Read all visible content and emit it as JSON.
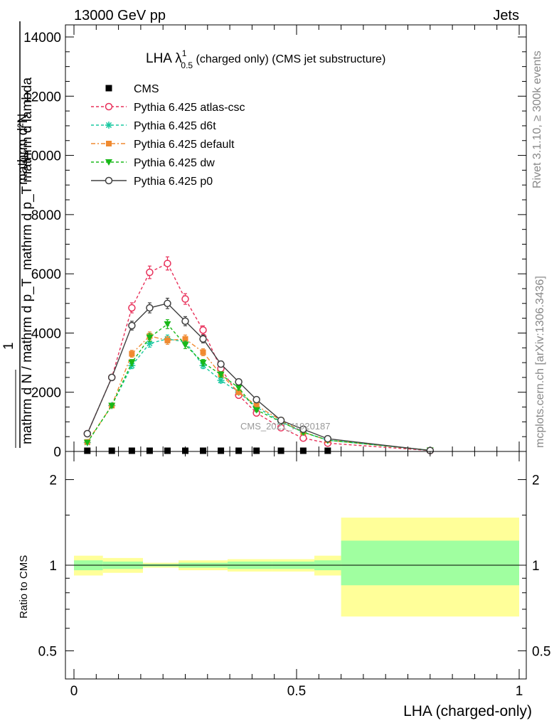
{
  "header": {
    "left": "13000 GeV pp",
    "right": "Jets"
  },
  "title": {
    "main": "LHA λ",
    "sup": "1",
    "sub": "0.5",
    "rest": " (charged only) (CMS jet substructure)"
  },
  "side_labels": {
    "rivet": "Rivet 3.1.10, ≥ 300k events",
    "mcplots": "mcplots.cern.ch [arXiv:1306.3436]"
  },
  "watermark": "CMS_2021_I1920187",
  "ylabel_main": {
    "line1": "mathrm d²N",
    "line2": "mathrm d p_T mathrm d lambda",
    "line3": "mathrm d p_T mathrm d lambda",
    "frac_num": "1",
    "frac_den": "mathrm d N / mathrm d p_T"
  },
  "ylabel_ratio": "Ratio to CMS",
  "xlabel": "LHA (charged-only)",
  "colors": {
    "atlas": "#e8305a",
    "d6t": "#18c8a0",
    "default": "#f08a30",
    "dw": "#18b818",
    "p0": "#404040",
    "band_inner": "#a0ff a0",
    "band_outer": "#ffff99"
  },
  "chart_data": [
    {
      "type": "line",
      "xlim": [
        0,
        1
      ],
      "ylim": [
        0,
        14000
      ],
      "yticks": [
        0,
        2000,
        4000,
        6000,
        8000,
        10000,
        12000,
        14000
      ],
      "ytick_labels": [
        "0",
        "2000",
        "4000",
        "6000",
        "8000",
        "10000",
        "12000",
        "14000"
      ],
      "x": [
        0.03,
        0.085,
        0.13,
        0.17,
        0.21,
        0.25,
        0.29,
        0.33,
        0.37,
        0.41,
        0.465,
        0.515,
        0.57,
        0.8
      ],
      "legend": [
        "CMS",
        "Pythia 6.425 atlas-csc",
        "Pythia 6.425 d6t",
        "Pythia 6.425 default",
        "Pythia 6.425 dw",
        "Pythia 6.425 p0"
      ],
      "series": [
        {
          "name": "CMS",
          "marker": "square",
          "values": [
            0,
            0,
            0,
            0,
            0,
            0,
            0,
            0,
            0,
            0,
            0,
            0,
            0,
            null
          ]
        },
        {
          "name": "Pythia 6.425 atlas-csc",
          "marker": "open-circle",
          "values": [
            600,
            2500,
            4850,
            6050,
            6350,
            5150,
            4100,
            2800,
            1900,
            1300,
            800,
            450,
            280,
            30
          ]
        },
        {
          "name": "Pythia 6.425 d6t",
          "marker": "star",
          "values": [
            300,
            1550,
            2900,
            3650,
            3800,
            3700,
            2900,
            2400,
            2000,
            1500,
            1000,
            650,
            380,
            40
          ]
        },
        {
          "name": "Pythia 6.425 default",
          "marker": "filled-square",
          "values": [
            320,
            1550,
            3300,
            3900,
            3750,
            3800,
            3350,
            2600,
            2000,
            1550,
            1050,
            650,
            380,
            40
          ]
        },
        {
          "name": "Pythia 6.425 dw",
          "marker": "filled-triangle-down",
          "values": [
            300,
            1550,
            3000,
            3850,
            4300,
            3600,
            3000,
            2600,
            2150,
            1400,
            1000,
            650,
            380,
            40
          ]
        },
        {
          "name": "Pythia 6.425 p0",
          "marker": "open-circle",
          "values": [
            600,
            2500,
            4250,
            4850,
            5000,
            4400,
            3800,
            2950,
            2350,
            1750,
            1050,
            750,
            430,
            30
          ]
        }
      ]
    },
    {
      "type": "area",
      "xlim": [
        0,
        1
      ],
      "ylim": [
        0.4,
        2.3
      ],
      "log_y": true,
      "yticks": [
        0.5,
        1,
        2
      ],
      "ytick_labels": [
        "0.5",
        "1",
        "2"
      ],
      "xticks": [
        0,
        0.5,
        1
      ],
      "xtick_labels": [
        "0",
        "0.5",
        "1"
      ],
      "bins": [
        [
          0,
          0.065
        ],
        [
          0.065,
          0.155
        ],
        [
          0.155,
          0.235
        ],
        [
          0.235,
          0.345
        ],
        [
          0.345,
          0.445
        ],
        [
          0.445,
          0.54
        ],
        [
          0.54,
          0.6
        ],
        [
          0.6,
          1.0
        ]
      ],
      "band_inner": [
        [
          0.96,
          1.04
        ],
        [
          0.97,
          1.03
        ],
        [
          0.99,
          1.01
        ],
        [
          0.98,
          1.02
        ],
        [
          0.97,
          1.03
        ],
        [
          0.97,
          1.03
        ],
        [
          0.96,
          1.04
        ],
        [
          0.85,
          1.22
        ]
      ],
      "band_outer": [
        [
          0.92,
          1.08
        ],
        [
          0.94,
          1.06
        ],
        [
          0.98,
          1.02
        ],
        [
          0.96,
          1.04
        ],
        [
          0.95,
          1.05
        ],
        [
          0.95,
          1.05
        ],
        [
          0.92,
          1.08
        ],
        [
          0.66,
          1.47
        ]
      ],
      "reference": 1
    }
  ]
}
